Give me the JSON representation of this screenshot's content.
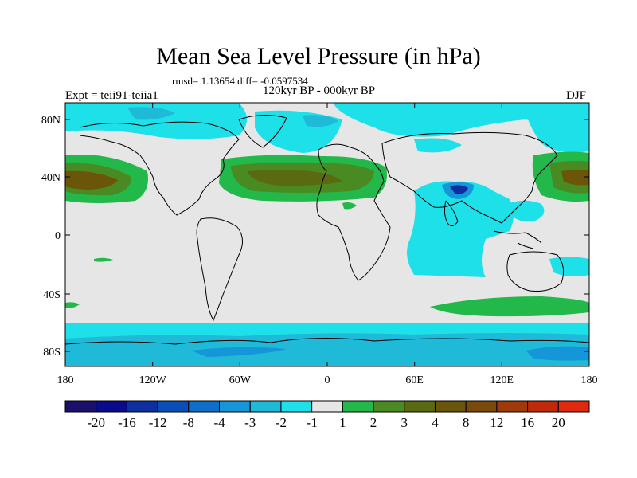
{
  "title": "Mean Sea Level Pressure (in hPa)",
  "stats_line": "rmsd= 1.13654  diff= -0.0597534",
  "subtitle": "120kyr BP - 000kyr BP",
  "left_label": "Expt = teii91-teiia1",
  "right_label": "DJF",
  "lat_labels": [
    "80N",
    "40N",
    "0",
    "40S",
    "80S"
  ],
  "lon_labels": [
    "180",
    "120W",
    "60W",
    "0",
    "60E",
    "120E",
    "180"
  ],
  "colorbar": {
    "colors": [
      "#1a0f6b",
      "#0a0a8c",
      "#0d2fa0",
      "#0a4fb8",
      "#0f6fc8",
      "#1496d8",
      "#1fbad8",
      "#1ee0e8",
      "#e6e6e6",
      "#22b84a",
      "#4a8a22",
      "#5a6a10",
      "#6a5508",
      "#7a4a0a",
      "#a03a0a",
      "#c02a0a",
      "#e02a10"
    ],
    "labels": [
      "-20",
      "-16",
      "-12",
      "-8",
      "-4",
      "-3",
      "-2",
      "-1",
      "1",
      "2",
      "3",
      "4",
      "8",
      "12",
      "16",
      "20"
    ]
  }
}
